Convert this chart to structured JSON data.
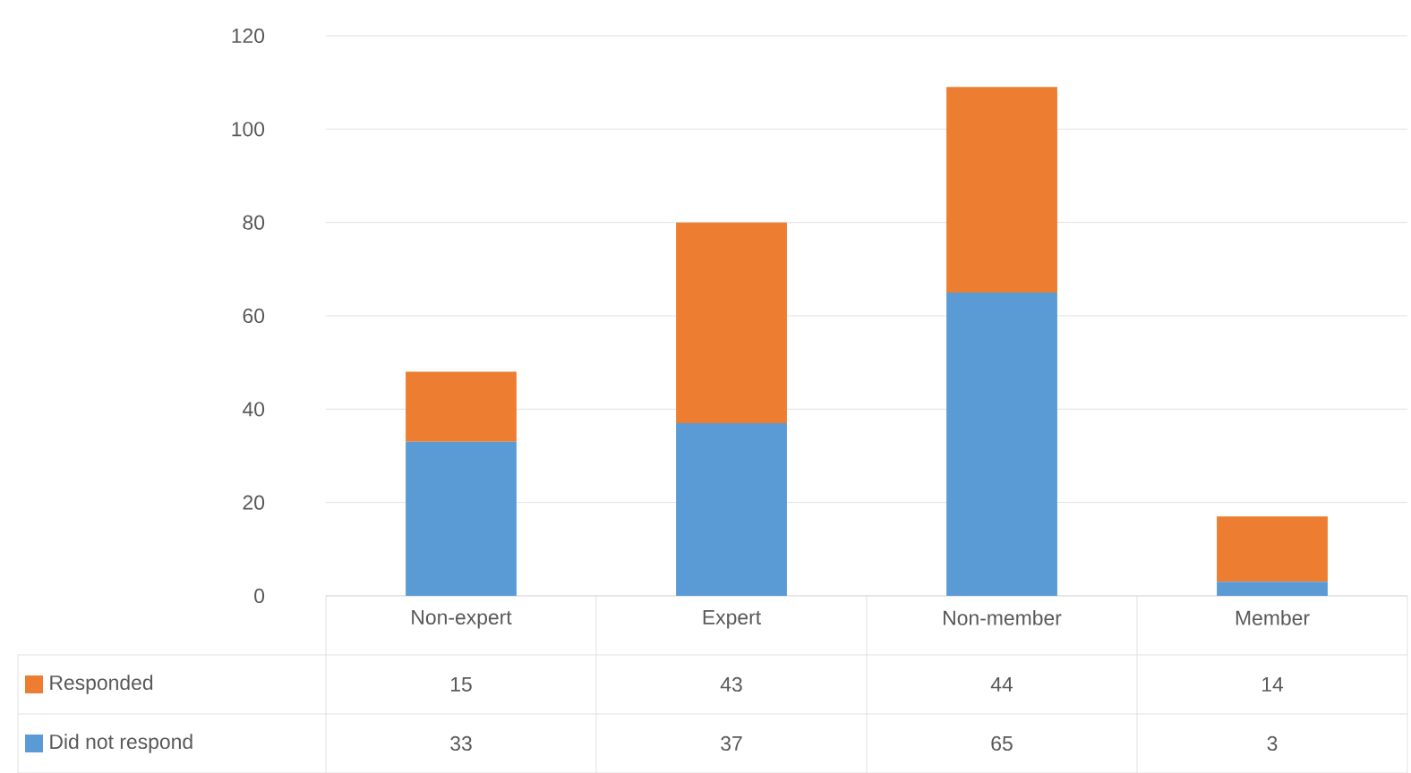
{
  "chart_data": {
    "type": "bar",
    "stacked": true,
    "categories": [
      "Non-expert",
      "Expert",
      "Non-member",
      "Member"
    ],
    "series": [
      {
        "name": "Did not respond",
        "color": "#5b9bd5",
        "values": [
          33,
          37,
          65,
          3
        ],
        "value_labels": [
          "33",
          "37",
          "65",
          "3"
        ]
      },
      {
        "name": "Responded",
        "color": "#ed7d31",
        "values": [
          15,
          43,
          44,
          14
        ],
        "value_labels": [
          "15",
          "43",
          "44",
          "14"
        ]
      }
    ],
    "ylim": [
      0,
      120
    ],
    "yticks": [
      0,
      20,
      40,
      60,
      80,
      100,
      120
    ],
    "grid": "y",
    "legend": "bottom"
  }
}
